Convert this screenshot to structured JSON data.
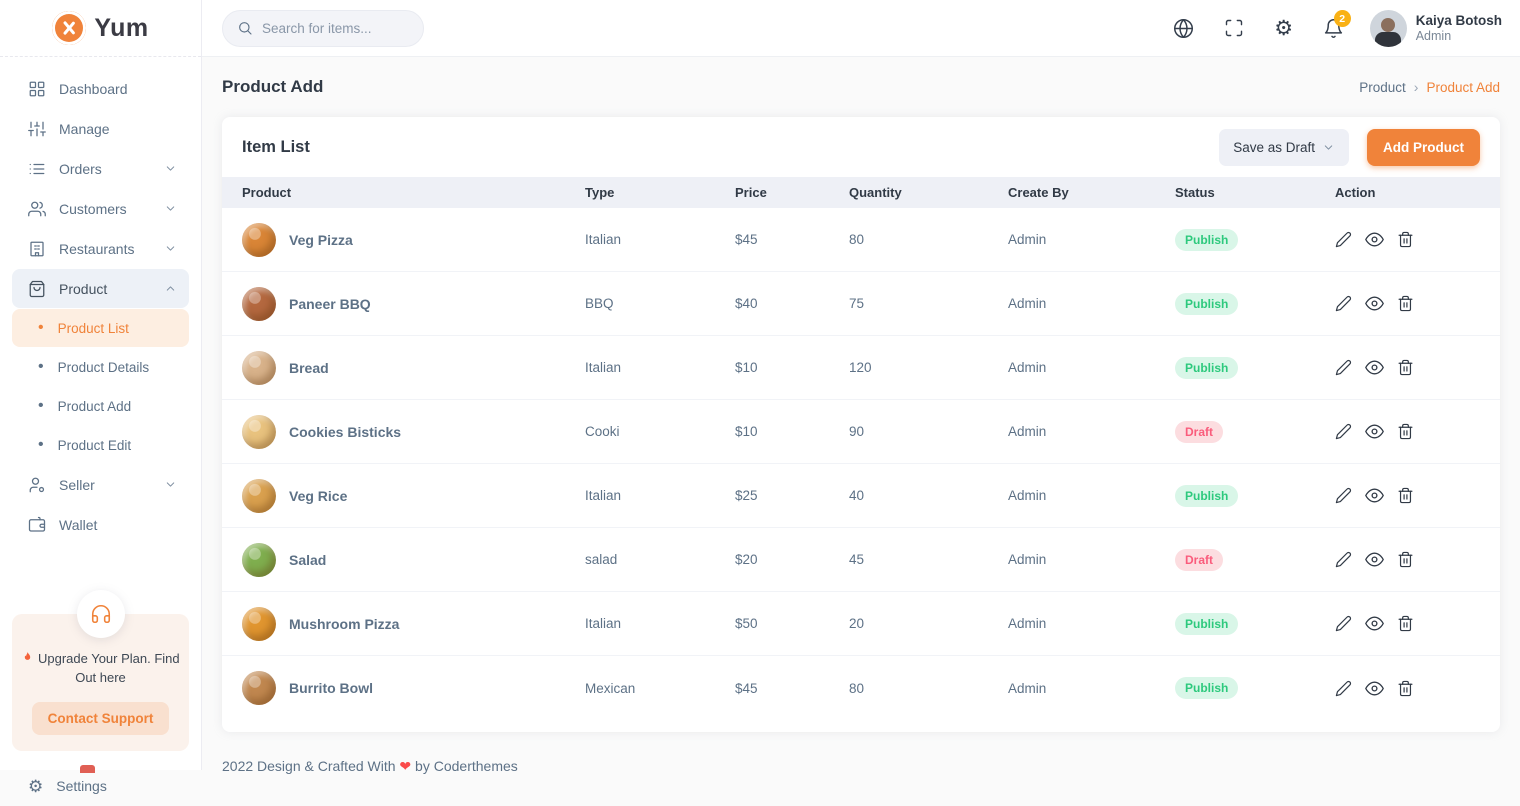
{
  "brand": {
    "name": "Yum"
  },
  "topbar": {
    "search_placeholder": "Search for items...",
    "icons": [
      "globe-icon",
      "fullscreen-icon",
      "gear-icon",
      "bell-icon"
    ],
    "notification_count": "2",
    "user": {
      "name": "Kaiya Botosh",
      "role": "Admin"
    }
  },
  "sidebar": {
    "dashboard": "Dashboard",
    "manage": "Manage",
    "orders": "Orders",
    "customers": "Customers",
    "restaurants": "Restaurants",
    "product": "Product",
    "submenu": [
      "Product List",
      "Product Details",
      "Product Add",
      "Product Edit"
    ],
    "active_submenu_item": "Product List",
    "seller": "Seller",
    "wallet": "Wallet",
    "upgrade_text": "Upgrade Your Plan. Find Out here",
    "contact_support": "Contact Support",
    "settings": "Settings"
  },
  "page": {
    "title": "Product Add",
    "breadcrumb_parent": "Product",
    "breadcrumb_separator": "›",
    "breadcrumb_current": "Product Add"
  },
  "card": {
    "title": "Item List",
    "save_draft_label": "Save as Draft",
    "add_product_label": "Add Product"
  },
  "table": {
    "headers": [
      "Product",
      "Type",
      "Price",
      "Quantity",
      "Create By",
      "Status",
      "Action"
    ],
    "action_icons": [
      "edit-pencil-icon",
      "view-eye-icon",
      "delete-trash-icon"
    ],
    "rows": [
      {
        "thumb_icon": "veg-pizza-image",
        "thumb_color": "#d98536",
        "name": "Veg Pizza",
        "type": "Italian",
        "price": "$45",
        "quantity": "80",
        "create_by": "Admin",
        "status": "Publish"
      },
      {
        "thumb_icon": "paneer-bbq-image",
        "thumb_color": "#b4683f",
        "name": "Paneer BBQ",
        "type": "BBQ",
        "price": "$40",
        "quantity": "75",
        "create_by": "Admin",
        "status": "Publish"
      },
      {
        "thumb_icon": "bread-image",
        "thumb_color": "#d8b28a",
        "name": "Bread",
        "type": "Italian",
        "price": "$10",
        "quantity": "120",
        "create_by": "Admin",
        "status": "Publish"
      },
      {
        "thumb_icon": "cookies-image",
        "thumb_color": "#e8c27e",
        "name": "Cookies Bisticks",
        "type": "Cooki",
        "price": "$10",
        "quantity": "90",
        "create_by": "Admin",
        "status": "Draft"
      },
      {
        "thumb_icon": "veg-rice-image",
        "thumb_color": "#d9a04e",
        "name": "Veg Rice",
        "type": "Italian",
        "price": "$25",
        "quantity": "40",
        "create_by": "Admin",
        "status": "Publish"
      },
      {
        "thumb_icon": "salad-image",
        "thumb_color": "#7fae4e",
        "name": "Salad",
        "type": "salad",
        "price": "$20",
        "quantity": "45",
        "create_by": "Admin",
        "status": "Draft"
      },
      {
        "thumb_icon": "mushroom-pizza-image",
        "thumb_color": "#e0952f",
        "name": "Mushroom Pizza",
        "type": "Italian",
        "price": "$50",
        "quantity": "20",
        "create_by": "Admin",
        "status": "Publish"
      },
      {
        "thumb_icon": "burrito-bowl-image",
        "thumb_color": "#c0874f",
        "name": "Burrito Bowl",
        "type": "Mexican",
        "price": "$45",
        "quantity": "80",
        "create_by": "Admin",
        "status": "Publish"
      }
    ]
  },
  "footer": {
    "text_before": "2022 Design & Crafted With",
    "heart": "❤",
    "text_after": "by Coderthemes"
  },
  "colors": {
    "accent_orange": "#f0833a",
    "dark_text": "#313a46",
    "muted_text": "#5d7186",
    "success_text": "#2dc97d",
    "success_bg": "#d9f6e8",
    "danger_text": "#fa5c7c",
    "danger_bg": "#fcdde0",
    "notification_badge": "#f9b115",
    "table_header_bg": "#eef0f6",
    "active_parent_bg": "#edf1f7",
    "active_sub_bg": "#fdeee1",
    "upgrade_bg": "#fbf2ec"
  }
}
